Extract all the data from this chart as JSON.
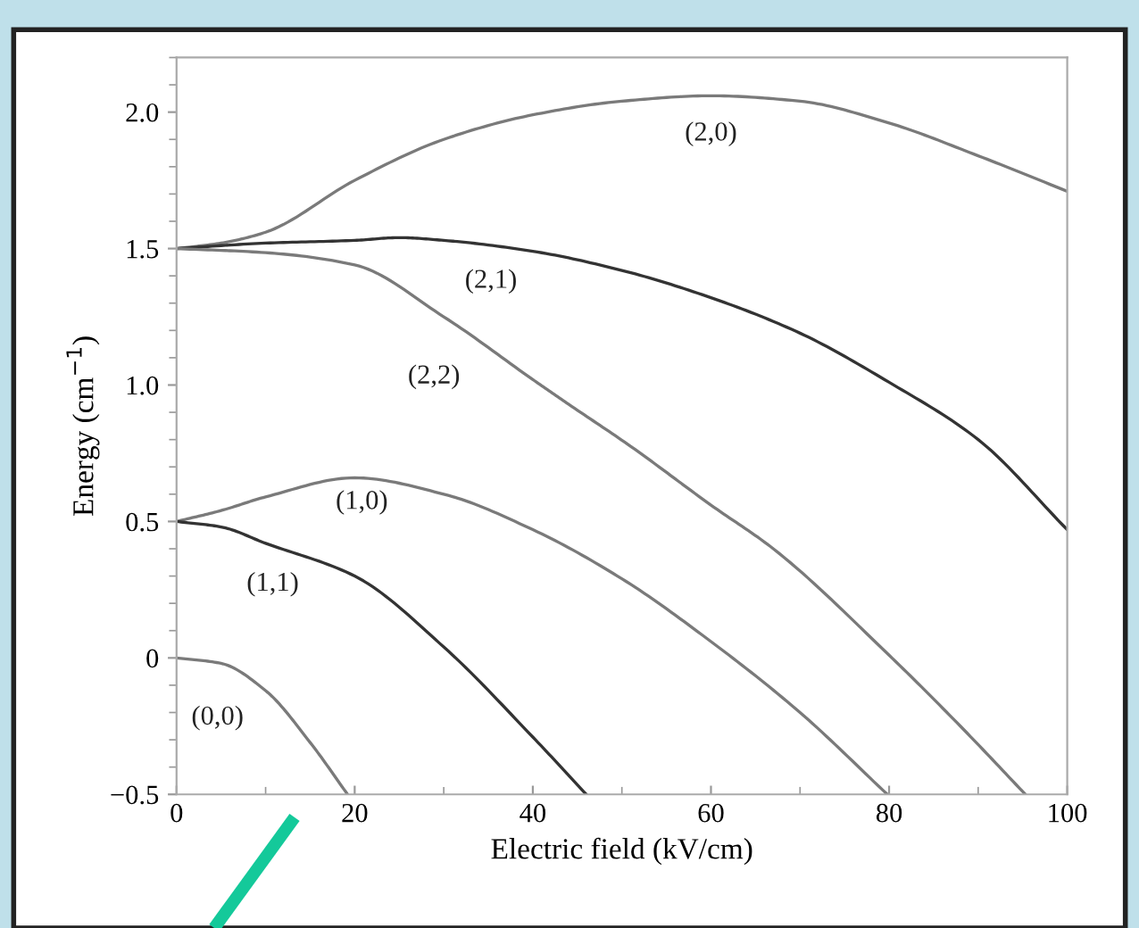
{
  "chart_data": {
    "type": "line",
    "xlabel": "Electric field (kV/cm)",
    "ylabel": "Energy (cm$^{−1}$)",
    "xlim": [
      0,
      100
    ],
    "ylim": [
      -0.5,
      2.2
    ],
    "xticks": [
      0,
      20,
      40,
      60,
      80,
      100
    ],
    "yticks": [
      {
        "value": -0.5,
        "label": "−0.5"
      },
      0,
      0.5,
      {
        "value": 1.0,
        "label": "1.0"
      },
      1.5,
      {
        "value": 2.0,
        "label": "2.0"
      }
    ],
    "grid": false,
    "legend": false,
    "marker": "none",
    "line_style": "solid",
    "series": [
      {
        "name": "(2,0)",
        "color": "#7a7a7a",
        "x": [
          0,
          5,
          10,
          20,
          30,
          40,
          50,
          60,
          70,
          80,
          90,
          100
        ],
        "values": [
          1.5,
          1.52,
          1.56,
          1.75,
          1.9,
          1.99,
          2.04,
          2.06,
          2.04,
          1.96,
          1.84,
          1.71
        ]
      },
      {
        "name": "(2,1)",
        "color": "#333333",
        "x": [
          0,
          10,
          20,
          25,
          30,
          40,
          50,
          60,
          70,
          80,
          90,
          100
        ],
        "values": [
          1.5,
          1.52,
          1.53,
          1.54,
          1.53,
          1.49,
          1.42,
          1.32,
          1.19,
          1.01,
          0.8,
          0.47
        ]
      },
      {
        "name": "(2,2)",
        "color": "#7a7a7a",
        "x": [
          0,
          10,
          20,
          30,
          40,
          44,
          51,
          60,
          67,
          80,
          88,
          95.3
        ],
        "values": [
          1.5,
          1.485,
          1.44,
          1.25,
          1.02,
          0.93,
          0.775,
          0.56,
          0.4,
          0.01,
          -0.25,
          -0.5
        ]
      },
      {
        "name": "(1,0)",
        "color": "#7a7a7a",
        "x": [
          0,
          5,
          10,
          20,
          30,
          40,
          50,
          60,
          70,
          79.8
        ],
        "values": [
          0.5,
          0.54,
          0.59,
          0.66,
          0.6,
          0.47,
          0.29,
          0.06,
          -0.2,
          -0.5
        ]
      },
      {
        "name": "(1,1)",
        "color": "#333333",
        "x": [
          0,
          5,
          10,
          20,
          30,
          40,
          46
        ],
        "values": [
          0.5,
          0.48,
          0.42,
          0.3,
          0.04,
          -0.29,
          -0.5
        ]
      },
      {
        "name": "(0,0)",
        "color": "#7a7a7a",
        "x": [
          0,
          5,
          10,
          15,
          19.2
        ],
        "values": [
          0,
          -0.02,
          -0.12,
          -0.31,
          -0.5
        ]
      }
    ]
  }
}
